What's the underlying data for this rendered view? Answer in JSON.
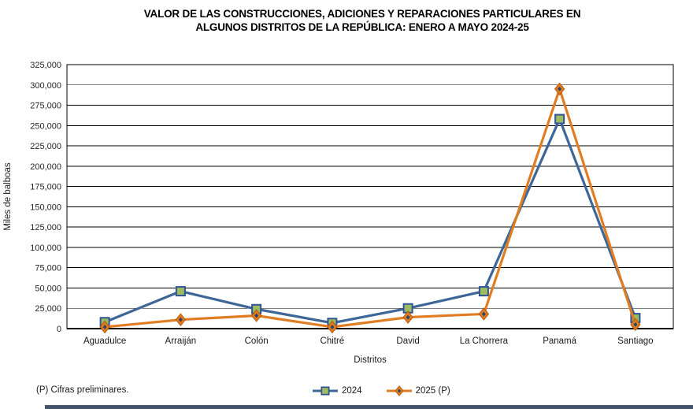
{
  "title_lines": [
    "VALOR DE LAS CONSTRUCCIONES, ADICIONES Y REPARACIONES PARTICULARES EN",
    "ALGUNOS DISTRITOS DE LA REPÚBLICA: ENERO A MAYO 2024-25"
  ],
  "footnote": "(P) Cifras preliminares.",
  "colors": {
    "series_2024_line": "#3E6696",
    "series_2024_marker_fill": "#9DBB61",
    "series_2024_marker_stroke": "#2F5496",
    "series_2025_line": "#E07D22",
    "series_2025_marker_stroke": "#B65708",
    "series_2025_marker_center": "#2F4469",
    "grid": "#000000",
    "bottom_bar": "#44546A"
  },
  "chart_data": {
    "type": "line",
    "title": "VALOR DE LAS CONSTRUCCIONES, ADICIONES Y REPARACIONES PARTICULARES EN ALGUNOS DISTRITOS DE LA REPÚBLICA: ENERO A MAYO 2024-25",
    "xlabel": "Distritos",
    "ylabel": "Miles de balboas",
    "categories": [
      "Aguadulce",
      "Arraiján",
      "Colón",
      "Chitré",
      "David",
      "La Chorrera",
      "Panamá",
      "Santiago"
    ],
    "series": [
      {
        "name": "2024",
        "marker": "square",
        "line_color": "#3E6696",
        "marker_fill": "#9DBB61",
        "marker_stroke": "#2F5496",
        "values": [
          8000,
          46000,
          24000,
          7000,
          25000,
          46000,
          258000,
          13000
        ]
      },
      {
        "name": "2025 (P)",
        "marker": "diamond",
        "line_color": "#E07D22",
        "marker_fill": "#E07D22",
        "marker_stroke": "#B65708",
        "marker_center": "#2F4469",
        "values": [
          2000,
          11000,
          16000,
          2000,
          14000,
          18000,
          295000,
          5000
        ]
      }
    ],
    "ylim": [
      0,
      325000
    ],
    "ytick_step": 25000,
    "ytick_labels": [
      "0",
      "25,000",
      "50,000",
      "75,000",
      "100,000",
      "125,000",
      "150,000",
      "175,000",
      "200,000",
      "225,000",
      "250,000",
      "275,000",
      "300,000",
      "325,000"
    ],
    "grid": "horizontal",
    "legend_position": "bottom"
  }
}
